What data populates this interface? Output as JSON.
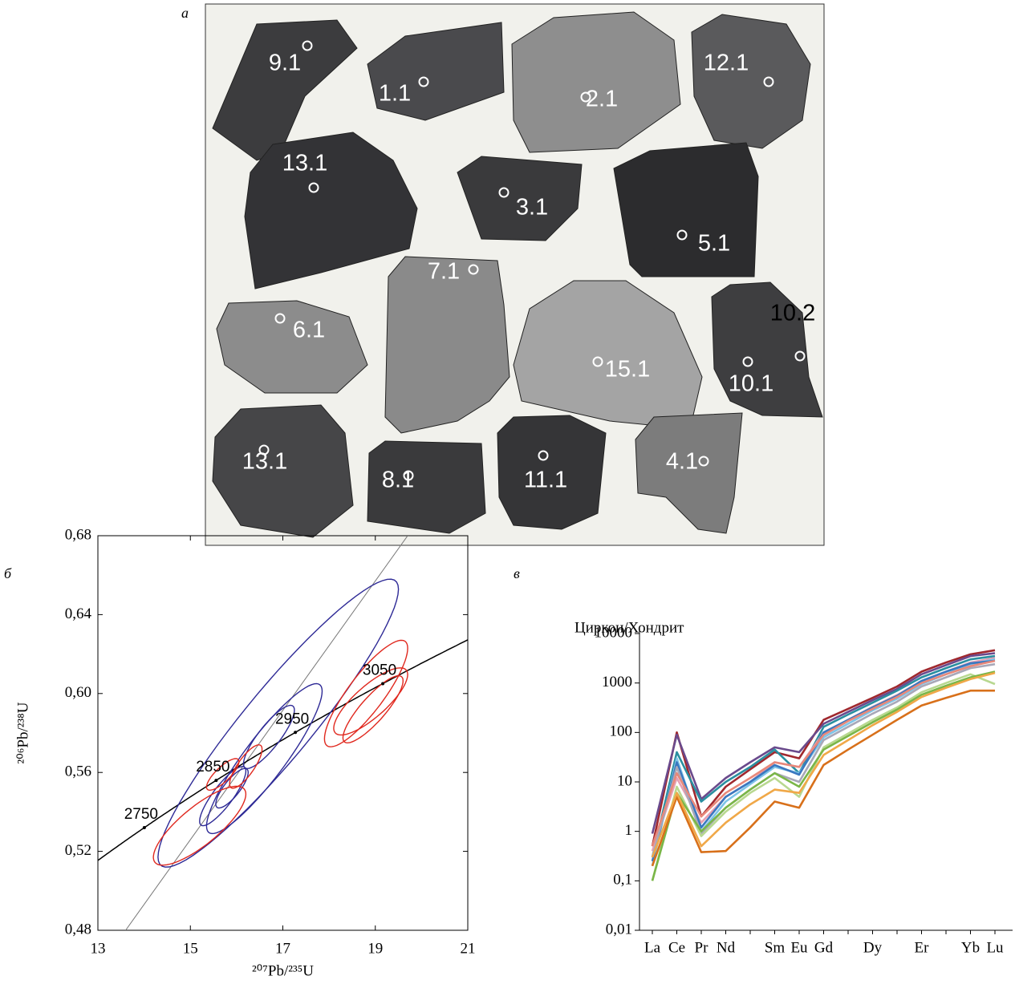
{
  "image_panel": {
    "panel_label": "а",
    "labels": [
      "9.1",
      "1.1",
      "2.1",
      "12.1",
      "13.1",
      "3.1",
      "5.1",
      "7.1",
      "6.1",
      "15.1",
      "10.1",
      "10.2",
      "13.1",
      "8.1",
      "11.1",
      "4.1"
    ]
  },
  "chart_data": [
    {
      "type": "concordia",
      "panel_label": "б",
      "xlabel": "²⁰⁷Pb/²³⁵U",
      "ylabel": "²⁰⁶Pb/²³⁸U",
      "xlim": [
        13,
        21
      ],
      "ylim": [
        0.48,
        0.68
      ],
      "xticks": [
        13,
        15,
        17,
        19,
        21
      ],
      "yticks": [
        {
          "value": 0.48,
          "label": "0,48"
        },
        {
          "value": 0.52,
          "label": "0,52"
        },
        {
          "value": 0.56,
          "label": "0,56"
        },
        {
          "value": 0.6,
          "label": "0,60"
        },
        {
          "value": 0.64,
          "label": "0,64"
        },
        {
          "value": 0.68,
          "label": "0,68"
        }
      ],
      "concordia_ages": [
        2750,
        2850,
        2950,
        3050
      ],
      "discordia": {
        "x": [
          13.6,
          19.7
        ],
        "y": [
          0.48,
          0.68
        ]
      },
      "series": [
        {
          "color": "#2e2a96",
          "x": [
            16.9,
            16.6,
            16.7,
            15.9,
            15.7
          ],
          "y": [
            0.585,
            0.567,
            0.578,
            0.552,
            0.548
          ],
          "x_err": [
            2.6,
            1.25,
            0.55,
            0.35,
            0.5
          ],
          "y_err": [
            0.073,
            0.038,
            0.016,
            0.01,
            0.015
          ],
          "rho": [
            0.93,
            0.9,
            0.85,
            0.8,
            0.85
          ]
        },
        {
          "color": "#e0281e",
          "x": [
            15.2,
            15.7,
            16.2,
            18.8,
            18.9,
            18.95
          ],
          "y": [
            0.533,
            0.559,
            0.563,
            0.6,
            0.596,
            0.592
          ],
          "x_err": [
            1.0,
            0.35,
            0.35,
            0.9,
            0.8,
            0.65
          ],
          "y_err": [
            0.02,
            0.008,
            0.011,
            0.027,
            0.017,
            0.017
          ],
          "rho": [
            0.8,
            0.8,
            0.8,
            0.85,
            0.8,
            0.85
          ]
        }
      ]
    },
    {
      "type": "line",
      "panel_label": "в",
      "ylabel": "Циркон/Хондрит",
      "yscale": "log",
      "categories": [
        "La",
        "Ce",
        "Pr",
        "Nd",
        null,
        "Sm",
        "Eu",
        "Gd",
        null,
        "Dy",
        null,
        "Er",
        null,
        "Yb",
        "Lu"
      ],
      "ylim": [
        0.01,
        10000
      ],
      "yticks": [
        {
          "value": 0.01,
          "label": "0,01"
        },
        {
          "value": 0.1,
          "label": "0,1"
        },
        1,
        10,
        100,
        1000,
        10000
      ],
      "series": [
        {
          "color": "#a0282e",
          "values": [
            0.5,
            100,
            2,
            8,
            18,
            40,
            30,
            180,
            300,
            500,
            850,
            1700,
            2600,
            3800,
            4600
          ]
        },
        {
          "color": "#6a4a8c",
          "values": [
            0.9,
            90,
            4.5,
            12,
            25,
            50,
            40,
            150,
            260,
            450,
            760,
            1500,
            2300,
            3500,
            4000
          ]
        },
        {
          "color": "#2a8fa0",
          "values": [
            0.3,
            40,
            4,
            10,
            20,
            45,
            15,
            130,
            230,
            400,
            700,
            1300,
            2000,
            3000,
            3500
          ]
        },
        {
          "color": "#e6a0b4",
          "values": [
            0.4,
            12,
            1.5,
            5,
            10,
            25,
            20,
            100,
            180,
            330,
            570,
            1100,
            1700,
            2600,
            3200
          ]
        },
        {
          "color": "#7fc4e8",
          "values": [
            0.2,
            30,
            1,
            4,
            9,
            20,
            15,
            80,
            150,
            280,
            480,
            950,
            1500,
            2400,
            3000
          ]
        },
        {
          "color": "#3a78c0",
          "values": [
            0.25,
            25,
            1.2,
            5,
            10,
            22,
            14,
            100,
            180,
            320,
            550,
            1100,
            1700,
            2500,
            2800
          ]
        },
        {
          "color": "#a8a8b8",
          "values": [
            0.3,
            20,
            0.9,
            3,
            7,
            15,
            10,
            70,
            130,
            240,
            420,
            850,
            1300,
            2000,
            2400
          ]
        },
        {
          "color": "#b8d890",
          "values": [
            0.1,
            8,
            0.8,
            2.5,
            6,
            12,
            5,
            50,
            95,
            180,
            320,
            650,
            1000,
            1500,
            950
          ]
        },
        {
          "color": "#7ab648",
          "values": [
            0.1,
            6,
            1,
            3,
            7,
            15,
            8,
            45,
            85,
            160,
            290,
            580,
            880,
            1300,
            1700
          ]
        },
        {
          "color": "#d8701a",
          "values": [
            0.2,
            5,
            0.38,
            0.4,
            1.2,
            4,
            3,
            22,
            45,
            90,
            180,
            350,
            500,
            700,
            700
          ]
        },
        {
          "color": "#f0a848",
          "values": [
            0.3,
            6,
            0.5,
            1.5,
            3.5,
            7,
            6,
            35,
            70,
            140,
            260,
            520,
            800,
            1200,
            1600
          ]
        },
        {
          "color": "#e8887a",
          "values": [
            0.5,
            15,
            2,
            6,
            12,
            25,
            20,
            90,
            170,
            300,
            520,
            1000,
            1500,
            2200,
            2800
          ]
        }
      ]
    }
  ]
}
